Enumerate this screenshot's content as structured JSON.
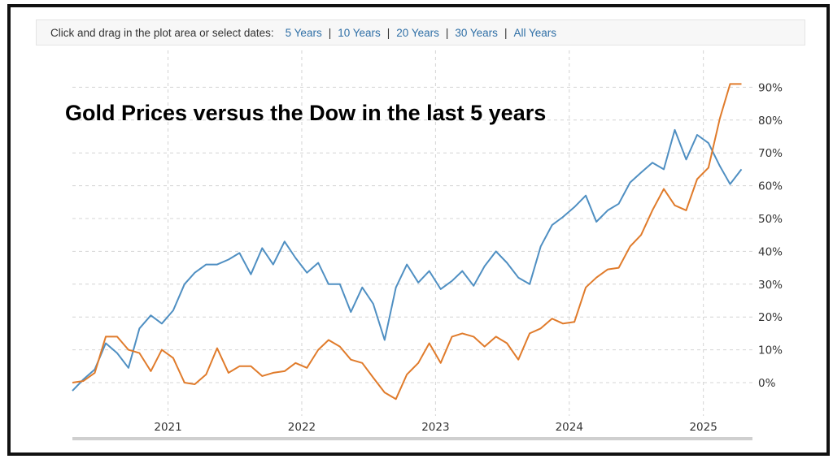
{
  "toolbar": {
    "prompt": "Click and drag in the plot area or select dates:",
    "ranges": [
      {
        "label": "5 Years"
      },
      {
        "label": "10 Years"
      },
      {
        "label": "20 Years"
      },
      {
        "label": "30 Years"
      },
      {
        "label": "All Years"
      }
    ],
    "separator": "|"
  },
  "colors": {
    "dow": "#4f8fc2",
    "gold": "#e07b2b",
    "grid": "#d4d4d4",
    "frame": "#111111"
  },
  "chart_data": {
    "type": "line",
    "title": "Gold Prices versus the Dow in the last 5 years",
    "xlabel": "",
    "ylabel": "",
    "x_ticks": [
      "2021",
      "2022",
      "2023",
      "2024",
      "2025"
    ],
    "y_ticks": [
      "0%",
      "10%",
      "20%",
      "30%",
      "40%",
      "50%",
      "60%",
      "70%",
      "80%",
      "90%"
    ],
    "ylim": [
      -10,
      95
    ],
    "xlim": [
      "2020-04-15",
      "2025-05-15"
    ],
    "grid": true,
    "series": [
      {
        "color": "#4f8fc2",
        "points": [
          [
            "2020-04-15",
            -2.5
          ],
          [
            "2020-05-15",
            1
          ],
          [
            "2020-06-15",
            4
          ],
          [
            "2020-07-15",
            12
          ],
          [
            "2020-08-15",
            9
          ],
          [
            "2020-09-15",
            4.5
          ],
          [
            "2020-10-15",
            16.5
          ],
          [
            "2020-11-15",
            20.5
          ],
          [
            "2020-12-15",
            18
          ],
          [
            "2021-01-15",
            22
          ],
          [
            "2021-02-15",
            30
          ],
          [
            "2021-03-15",
            33.5
          ],
          [
            "2021-04-15",
            36
          ],
          [
            "2021-05-15",
            36
          ],
          [
            "2021-06-15",
            37.5
          ],
          [
            "2021-07-15",
            39.5
          ],
          [
            "2021-08-15",
            33
          ],
          [
            "2021-09-15",
            41
          ],
          [
            "2021-10-15",
            36
          ],
          [
            "2021-11-15",
            43
          ],
          [
            "2021-12-15",
            38
          ],
          [
            "2022-01-15",
            33.5
          ],
          [
            "2022-02-15",
            36.5
          ],
          [
            "2022-03-15",
            30
          ],
          [
            "2022-04-15",
            30
          ],
          [
            "2022-05-15",
            21.5
          ],
          [
            "2022-06-15",
            29
          ],
          [
            "2022-07-15",
            24
          ],
          [
            "2022-08-15",
            13
          ],
          [
            "2022-09-15",
            29
          ],
          [
            "2022-10-15",
            36
          ],
          [
            "2022-11-15",
            30.5
          ],
          [
            "2022-12-15",
            34
          ],
          [
            "2023-01-15",
            28.5
          ],
          [
            "2023-02-15",
            31
          ],
          [
            "2023-03-15",
            34
          ],
          [
            "2023-04-15",
            29.5
          ],
          [
            "2023-05-15",
            35.5
          ],
          [
            "2023-06-15",
            40
          ],
          [
            "2023-07-15",
            36.5
          ],
          [
            "2023-08-15",
            32
          ],
          [
            "2023-09-15",
            30
          ],
          [
            "2023-10-15",
            41.5
          ],
          [
            "2023-11-15",
            48
          ],
          [
            "2023-12-15",
            50.5
          ],
          [
            "2024-01-15",
            53.5
          ],
          [
            "2024-02-15",
            57
          ],
          [
            "2024-03-15",
            49
          ],
          [
            "2024-04-15",
            52.5
          ],
          [
            "2024-05-15",
            54.5
          ],
          [
            "2024-06-15",
            61
          ],
          [
            "2024-07-15",
            64
          ],
          [
            "2024-08-15",
            67
          ],
          [
            "2024-09-15",
            65
          ],
          [
            "2024-10-15",
            77
          ],
          [
            "2024-11-15",
            68
          ],
          [
            "2024-12-15",
            75.5
          ],
          [
            "2025-01-15",
            73
          ],
          [
            "2025-02-15",
            66
          ],
          [
            "2025-03-15",
            60.5
          ],
          [
            "2025-04-15",
            65
          ]
        ]
      },
      {
        "color": "#e07b2b",
        "points": [
          [
            "2020-04-15",
            0
          ],
          [
            "2020-05-15",
            0.5
          ],
          [
            "2020-06-15",
            3
          ],
          [
            "2020-07-15",
            14
          ],
          [
            "2020-08-15",
            14
          ],
          [
            "2020-09-15",
            10
          ],
          [
            "2020-10-15",
            9
          ],
          [
            "2020-11-15",
            3.5
          ],
          [
            "2020-12-15",
            10
          ],
          [
            "2021-01-15",
            7.5
          ],
          [
            "2021-02-15",
            0
          ],
          [
            "2021-03-15",
            -0.5
          ],
          [
            "2021-04-15",
            2.5
          ],
          [
            "2021-05-15",
            10.5
          ],
          [
            "2021-06-15",
            3
          ],
          [
            "2021-07-15",
            5
          ],
          [
            "2021-08-15",
            5
          ],
          [
            "2021-09-15",
            2
          ],
          [
            "2021-10-15",
            3
          ],
          [
            "2021-11-15",
            3.5
          ],
          [
            "2021-12-15",
            6
          ],
          [
            "2022-01-15",
            4.5
          ],
          [
            "2022-02-15",
            10
          ],
          [
            "2022-03-15",
            13
          ],
          [
            "2022-04-15",
            11
          ],
          [
            "2022-05-15",
            7
          ],
          [
            "2022-06-15",
            6
          ],
          [
            "2022-07-15",
            1.5
          ],
          [
            "2022-08-15",
            -3
          ],
          [
            "2022-09-15",
            -5
          ],
          [
            "2022-10-15",
            2.5
          ],
          [
            "2022-11-15",
            6
          ],
          [
            "2022-12-15",
            12
          ],
          [
            "2023-01-15",
            6
          ],
          [
            "2023-02-15",
            14
          ],
          [
            "2023-03-15",
            15
          ],
          [
            "2023-04-15",
            14
          ],
          [
            "2023-05-15",
            11
          ],
          [
            "2023-06-15",
            14
          ],
          [
            "2023-07-15",
            12
          ],
          [
            "2023-08-15",
            7
          ],
          [
            "2023-09-15",
            15
          ],
          [
            "2023-10-15",
            16.5
          ],
          [
            "2023-11-15",
            19.5
          ],
          [
            "2023-12-15",
            18
          ],
          [
            "2024-01-15",
            18.5
          ],
          [
            "2024-02-15",
            29
          ],
          [
            "2024-03-15",
            32
          ],
          [
            "2024-04-15",
            34.5
          ],
          [
            "2024-05-15",
            35
          ],
          [
            "2024-06-15",
            41.5
          ],
          [
            "2024-07-15",
            45
          ],
          [
            "2024-08-15",
            52.5
          ],
          [
            "2024-09-15",
            59
          ],
          [
            "2024-10-15",
            54
          ],
          [
            "2024-11-15",
            52.5
          ],
          [
            "2024-12-15",
            62
          ],
          [
            "2025-01-15",
            65.5
          ],
          [
            "2025-02-15",
            80.5
          ],
          [
            "2025-03-15",
            91
          ],
          [
            "2025-04-15",
            91
          ]
        ]
      }
    ]
  }
}
